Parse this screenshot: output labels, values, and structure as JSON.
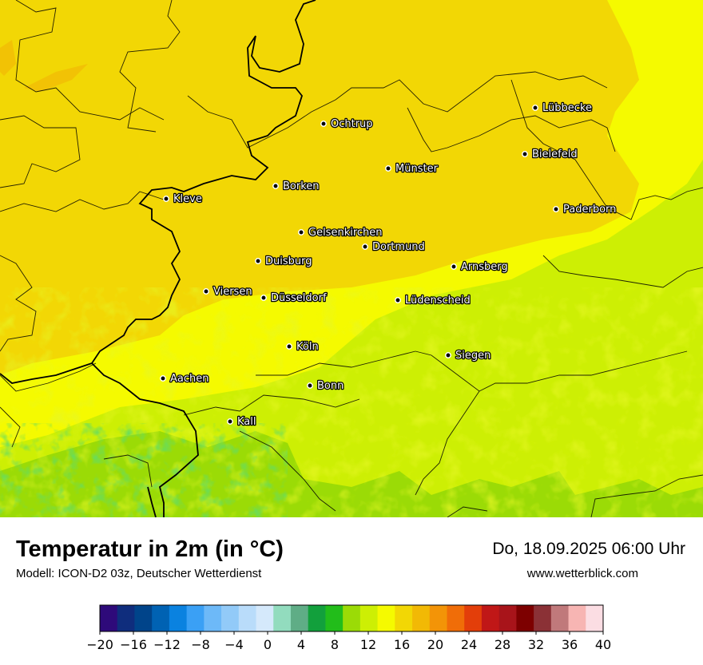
{
  "map": {
    "cities": [
      {
        "name": "Lübbecke"
      },
      {
        "name": "Ochtrup"
      },
      {
        "name": "Bielefeld"
      },
      {
        "name": "Münster"
      },
      {
        "name": "Borken"
      },
      {
        "name": "Kleve"
      },
      {
        "name": "Paderborn"
      },
      {
        "name": "Gelsenkirchen"
      },
      {
        "name": "Dortmund"
      },
      {
        "name": "Duisburg"
      },
      {
        "name": "Arnsberg"
      },
      {
        "name": "Viersen"
      },
      {
        "name": "Düsseldorf"
      },
      {
        "name": "Lüdenscheid"
      },
      {
        "name": "Köln"
      },
      {
        "name": "Siegen"
      },
      {
        "name": "Aachen"
      },
      {
        "name": "Bonn"
      },
      {
        "name": "Kall"
      }
    ]
  },
  "footer": {
    "title": "Temperatur in 2m (in °C)",
    "model": "Modell: ICON-D2 03z, Deutscher Wetterdienst",
    "datetime": "Do, 18.09.2025 06:00 Uhr",
    "website": "www.wetterblick.com"
  },
  "colorbar": {
    "ticks": [
      "−20",
      "−16",
      "−12",
      "−8",
      "−4",
      "0",
      "4",
      "8",
      "12",
      "16",
      "20",
      "24",
      "28",
      "32",
      "36",
      "40"
    ],
    "colors": [
      "#2e0a7a",
      "#0f2d7d",
      "#00448a",
      "#0062b3",
      "#0a82e0",
      "#3aa0f5",
      "#6db9f8",
      "#92caf8",
      "#b9dcfa",
      "#d5e9fb",
      "#92dcbe",
      "#5fad86",
      "#12a03c",
      "#22bd1a",
      "#9bdb06",
      "#cdef04",
      "#f5fa00",
      "#f2d705",
      "#f2b905",
      "#f39407",
      "#f06d08",
      "#e33e0a",
      "#c01717",
      "#a8141a",
      "#7d0000",
      "#8b3136",
      "#c0797b",
      "#f7b5b3",
      "#fbdde3"
    ]
  }
}
